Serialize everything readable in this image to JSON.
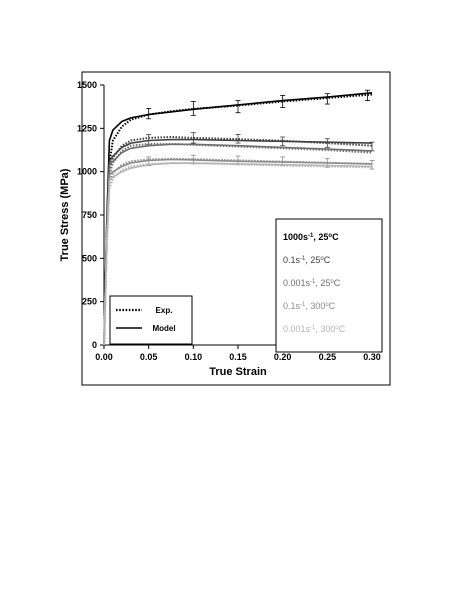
{
  "chart_data": {
    "type": "line",
    "xlabel": "True Strain",
    "ylabel": "True Stress (MPa)",
    "xlim": [
      0,
      0.3
    ],
    "ylim": [
      0,
      1500
    ],
    "xticks": [
      "0.00",
      "0.05",
      "0.10",
      "0.15",
      "0.20",
      "0.25",
      "0.30"
    ],
    "yticks": [
      "0",
      "250",
      "500",
      "750",
      "1000",
      "1250",
      "1500"
    ],
    "grid": false,
    "legend_style": {
      "position": "bottom-left",
      "entries": [
        {
          "label": "Exp.",
          "dash": "dotted"
        },
        {
          "label": "Model",
          "dash": "solid"
        }
      ]
    },
    "series_labels": [
      {
        "text": "1000s",
        "sup": "-1",
        "rest": ", 25",
        "deg": "o",
        "unit": "C",
        "color": "#000000",
        "bold": true
      },
      {
        "text": "0.1s",
        "sup": "-1",
        "rest": ", 25",
        "deg": "o",
        "unit": "C",
        "color": "#404040",
        "bold": false
      },
      {
        "text": "0.001s",
        "sup": "-1",
        "rest": ", 25",
        "deg": "o",
        "unit": "C",
        "color": "#6e6e6e",
        "bold": false
      },
      {
        "text": "0.1s",
        "sup": "-1",
        "rest": ", 300",
        "deg": "o",
        "unit": "C",
        "color": "#8c8c8c",
        "bold": false
      },
      {
        "text": "0.001s",
        "sup": "-1",
        "rest": ", 300",
        "deg": "o",
        "unit": "C",
        "color": "#b4b4b4",
        "bold": false
      }
    ],
    "series": [
      {
        "color": "#000000",
        "model": {
          "x": [
            0,
            0.003,
            0.006,
            0.01,
            0.02,
            0.03,
            0.05,
            0.075,
            0.1,
            0.15,
            0.2,
            0.25,
            0.3
          ],
          "y": [
            0,
            700,
            1180,
            1240,
            1290,
            1310,
            1330,
            1345,
            1360,
            1385,
            1410,
            1430,
            1455
          ]
        },
        "exp": {
          "x": [
            0,
            0.003,
            0.006,
            0.01,
            0.02,
            0.03,
            0.05,
            0.075,
            0.1,
            0.15,
            0.2,
            0.25,
            0.3
          ],
          "y": [
            0,
            600,
            1050,
            1180,
            1260,
            1300,
            1330,
            1348,
            1362,
            1382,
            1405,
            1425,
            1445
          ]
        },
        "error_bars": {
          "x": [
            0.05,
            0.1,
            0.15,
            0.2,
            0.25,
            0.295
          ],
          "y": [
            1335,
            1365,
            1375,
            1405,
            1420,
            1440
          ],
          "err": [
            30,
            40,
            35,
            35,
            30,
            30
          ]
        }
      },
      {
        "color": "#404040",
        "model": {
          "x": [
            0,
            0.003,
            0.006,
            0.01,
            0.02,
            0.03,
            0.05,
            0.075,
            0.1,
            0.15,
            0.2,
            0.25,
            0.3
          ],
          "y": [
            0,
            650,
            1060,
            1090,
            1140,
            1165,
            1180,
            1185,
            1185,
            1180,
            1175,
            1170,
            1165
          ]
        },
        "exp": {
          "x": [
            0,
            0.003,
            0.006,
            0.01,
            0.02,
            0.03,
            0.05,
            0.075,
            0.1,
            0.15,
            0.2,
            0.25,
            0.3
          ],
          "y": [
            0,
            600,
            1000,
            1080,
            1150,
            1180,
            1195,
            1200,
            1195,
            1188,
            1178,
            1165,
            1150
          ]
        },
        "error_bars": {
          "x": [
            0.05,
            0.1,
            0.15,
            0.2,
            0.25,
            0.3
          ],
          "y": [
            1185,
            1195,
            1190,
            1175,
            1165,
            1145
          ],
          "err": [
            30,
            30,
            25,
            25,
            25,
            25
          ]
        }
      },
      {
        "color": "#6e6e6e",
        "model": {
          "x": [
            0,
            0.003,
            0.006,
            0.01,
            0.02,
            0.03,
            0.05,
            0.075,
            0.1,
            0.15,
            0.2,
            0.25,
            0.3
          ],
          "y": [
            0,
            640,
            1040,
            1060,
            1110,
            1135,
            1150,
            1158,
            1158,
            1150,
            1140,
            1130,
            1120
          ]
        },
        "exp": {
          "x": [
            0,
            0.003,
            0.006,
            0.01,
            0.02,
            0.03,
            0.05,
            0.075,
            0.1,
            0.15,
            0.2,
            0.25,
            0.3
          ],
          "y": [
            0,
            580,
            980,
            1050,
            1120,
            1150,
            1160,
            1160,
            1155,
            1145,
            1135,
            1125,
            1110
          ]
        }
      },
      {
        "color": "#8c8c8c",
        "model": {
          "x": [
            0,
            0.003,
            0.006,
            0.01,
            0.02,
            0.03,
            0.05,
            0.075,
            0.1,
            0.15,
            0.2,
            0.25,
            0.3
          ],
          "y": [
            0,
            620,
            980,
            1000,
            1030,
            1050,
            1065,
            1070,
            1068,
            1060,
            1055,
            1050,
            1045
          ]
        },
        "exp": {
          "x": [
            0,
            0.003,
            0.006,
            0.01,
            0.02,
            0.03,
            0.05,
            0.075,
            0.1,
            0.15,
            0.2,
            0.25,
            0.3
          ],
          "y": [
            0,
            560,
            940,
            990,
            1040,
            1060,
            1070,
            1075,
            1072,
            1065,
            1058,
            1052,
            1045
          ]
        },
        "error_bars": {
          "x": [
            0.05,
            0.1,
            0.15,
            0.2,
            0.25,
            0.3
          ],
          "y": [
            1060,
            1070,
            1065,
            1060,
            1050,
            1040
          ],
          "err": [
            25,
            25,
            25,
            25,
            25,
            25
          ]
        }
      },
      {
        "color": "#b4b4b4",
        "model": {
          "x": [
            0,
            0.003,
            0.006,
            0.01,
            0.02,
            0.03,
            0.05,
            0.075,
            0.1,
            0.15,
            0.2,
            0.25,
            0.3
          ],
          "y": [
            0,
            600,
            950,
            970,
            1000,
            1020,
            1040,
            1048,
            1050,
            1045,
            1040,
            1035,
            1030
          ]
        },
        "exp": {
          "x": [
            0,
            0.003,
            0.006,
            0.01,
            0.02,
            0.03,
            0.05,
            0.075,
            0.1,
            0.15,
            0.2,
            0.25,
            0.3
          ],
          "y": [
            0,
            540,
            900,
            960,
            1010,
            1030,
            1045,
            1050,
            1048,
            1042,
            1035,
            1030,
            1025
          ]
        }
      }
    ]
  }
}
